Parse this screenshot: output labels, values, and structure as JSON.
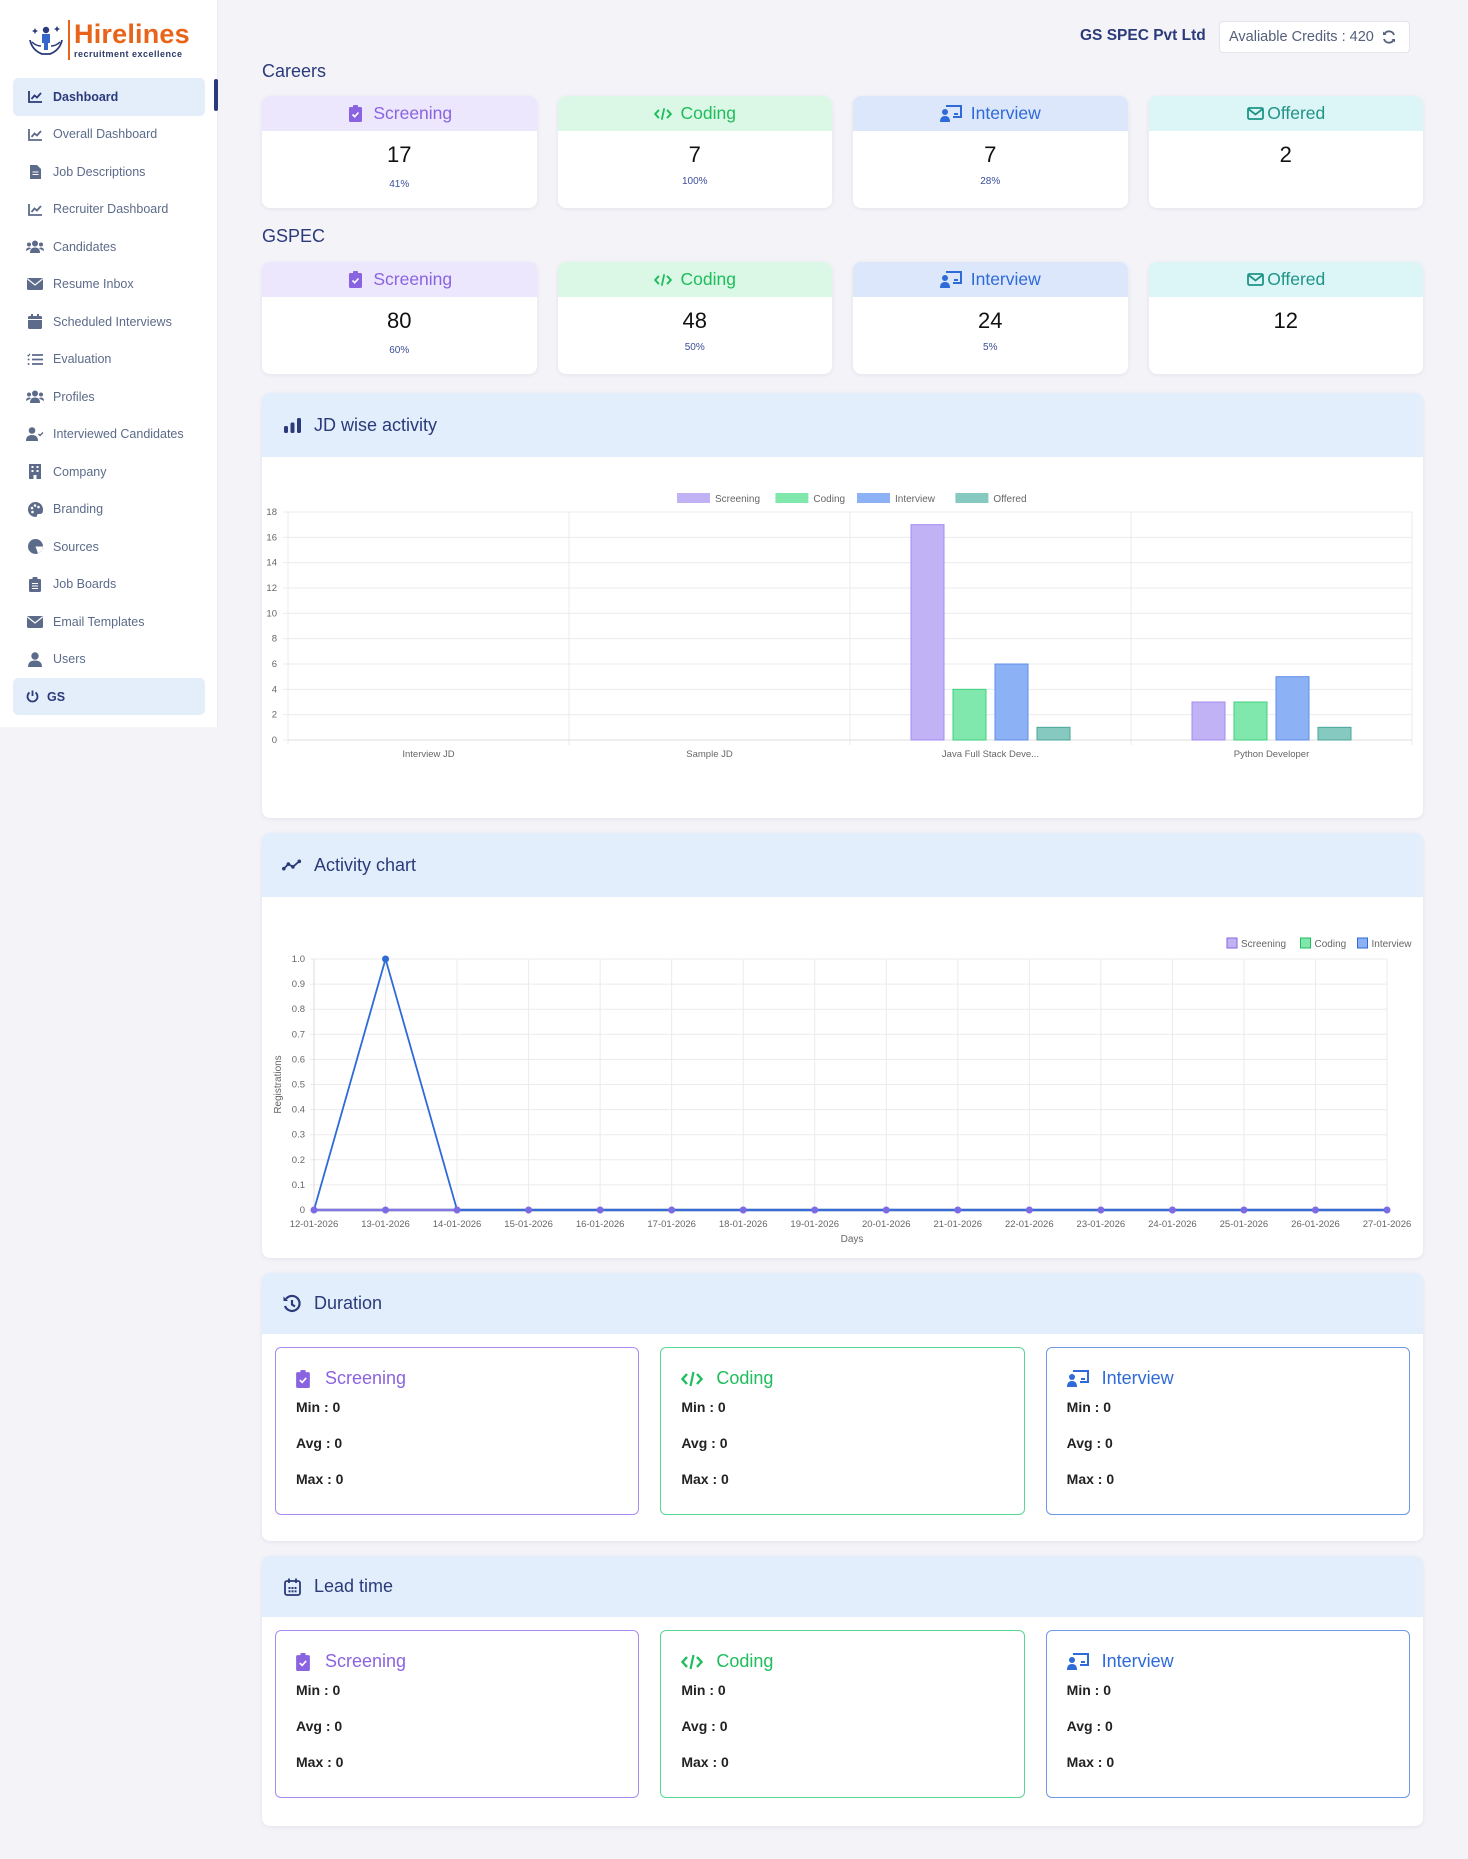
{
  "brand": {
    "name": "Hirelines",
    "tagline": "recruitment excellence",
    "accent": "#e8641b"
  },
  "sidebar": {
    "items": [
      {
        "label": "Dashboard",
        "icon": "chart-line-icon",
        "active": true
      },
      {
        "label": "Overall Dashboard",
        "icon": "chart-line-icon"
      },
      {
        "label": "Job Descriptions",
        "icon": "file-icon"
      },
      {
        "label": "Recruiter Dashboard",
        "icon": "chart-line-icon"
      },
      {
        "label": "Candidates",
        "icon": "users-icon"
      },
      {
        "label": "Resume Inbox",
        "icon": "envelope-icon"
      },
      {
        "label": "Scheduled Interviews",
        "icon": "calendar-icon"
      },
      {
        "label": "Evaluation",
        "icon": "list-check-icon"
      },
      {
        "label": "Profiles",
        "icon": "users-icon"
      },
      {
        "label": "Interviewed Candidates",
        "icon": "user-check-icon"
      },
      {
        "label": "Company",
        "icon": "building-icon"
      },
      {
        "label": "Branding",
        "icon": "palette-icon"
      },
      {
        "label": "Sources",
        "icon": "chart-pie-icon"
      },
      {
        "label": "Job Boards",
        "icon": "clipboard-list-icon"
      },
      {
        "label": "Email Templates",
        "icon": "envelope-icon"
      },
      {
        "label": "Users",
        "icon": "user-icon"
      }
    ],
    "logout": {
      "label": "GS",
      "icon": "power-icon"
    }
  },
  "header": {
    "company": "GS SPEC Pvt Ltd",
    "credits_label": "Avaliable Credits : 420"
  },
  "groups": [
    {
      "title": "Careers",
      "cards": [
        {
          "label": "Screening",
          "value": "17",
          "pct": "41%"
        },
        {
          "label": "Coding",
          "value": "7",
          "pct": "100%"
        },
        {
          "label": "Interview",
          "value": "7",
          "pct": "28%"
        },
        {
          "label": "Offered",
          "value": "2",
          "pct": ""
        }
      ]
    },
    {
      "title": "GSPEC",
      "cards": [
        {
          "label": "Screening",
          "value": "80",
          "pct": "60%"
        },
        {
          "label": "Coding",
          "value": "48",
          "pct": "50%"
        },
        {
          "label": "Interview",
          "value": "24",
          "pct": "5%"
        },
        {
          "label": "Offered",
          "value": "12",
          "pct": ""
        }
      ]
    }
  ],
  "panels": {
    "jd_activity": {
      "title": "JD wise activity"
    },
    "activity_chart": {
      "title": "Activity chart"
    },
    "duration": {
      "title": "Duration",
      "cards": [
        {
          "label": "Screening",
          "min": "Min : 0",
          "avg": "Avg : 0",
          "max": "Max : 0"
        },
        {
          "label": "Coding",
          "min": "Min : 0",
          "avg": "Avg : 0",
          "max": "Max : 0"
        },
        {
          "label": "Interview",
          "min": "Min : 0",
          "avg": "Avg : 0",
          "max": "Max : 0"
        }
      ]
    },
    "lead_time": {
      "title": "Lead time",
      "cards": [
        {
          "label": "Screening",
          "min": "Min : 0",
          "avg": "Avg : 0",
          "max": "Max : 0"
        },
        {
          "label": "Coding",
          "min": "Min : 0",
          "avg": "Avg : 0",
          "max": "Max : 0"
        },
        {
          "label": "Interview",
          "min": "Min : 0",
          "avg": "Avg : 0",
          "max": "Max : 0"
        }
      ]
    }
  },
  "colors": {
    "screening": "#8a63e0",
    "coding": "#1fbd5c",
    "interview": "#2e6ad8",
    "offered": "#1e9487"
  },
  "chart_data": [
    {
      "type": "bar",
      "title": "JD wise activity",
      "categories": [
        "Interview JD",
        "Sample JD",
        "Java Full Stack Deve...",
        "Python Developer"
      ],
      "series": [
        {
          "name": "Screening",
          "values": [
            0,
            0,
            17,
            3
          ],
          "color": "#c1b1f5"
        },
        {
          "name": "Coding",
          "values": [
            0,
            0,
            4,
            3
          ],
          "color": "#80e8ac"
        },
        {
          "name": "Interview",
          "values": [
            0,
            0,
            6,
            5
          ],
          "color": "#8db1f5"
        },
        {
          "name": "Offered",
          "values": [
            0,
            0,
            1,
            1
          ],
          "color": "#86c9c0"
        }
      ],
      "xlabel": "",
      "ylabel": "",
      "ylim": [
        0,
        18
      ],
      "yticks": [
        0,
        2,
        4,
        6,
        8,
        10,
        12,
        14,
        16,
        18
      ],
      "grid": true,
      "legend_position": "top"
    },
    {
      "type": "line",
      "title": "Activity chart",
      "x": [
        "12-01-2026",
        "13-01-2026",
        "14-01-2026",
        "15-01-2026",
        "16-01-2026",
        "17-01-2026",
        "18-01-2026",
        "19-01-2026",
        "20-01-2026",
        "21-01-2026",
        "22-01-2026",
        "23-01-2026",
        "24-01-2026",
        "25-01-2026",
        "26-01-2026",
        "27-01-2026"
      ],
      "series": [
        {
          "name": "Screening",
          "values": [
            0,
            0,
            0,
            0,
            0,
            0,
            0,
            0,
            0,
            0,
            0,
            0,
            0,
            0,
            0,
            0
          ],
          "color": "#8a63e0"
        },
        {
          "name": "Coding",
          "values": [
            0,
            0,
            0,
            0,
            0,
            0,
            0,
            0,
            0,
            0,
            0,
            0,
            0,
            0,
            0,
            0
          ],
          "color": "#1fbd5c"
        },
        {
          "name": "Interview",
          "values": [
            0,
            1,
            0,
            0,
            0,
            0,
            0,
            0,
            0,
            0,
            0,
            0,
            0,
            0,
            0,
            0
          ],
          "color": "#2e6ad8"
        }
      ],
      "xlabel": "Days",
      "ylabel": "Registrations",
      "ylim": [
        0,
        1.0
      ],
      "yticks": [
        "0",
        "0.1",
        "0.2",
        "0.3",
        "0.4",
        "0.5",
        "0.6",
        "0.7",
        "0.8",
        "0.9",
        "1.0"
      ],
      "grid": true,
      "legend_position": "top-right"
    }
  ]
}
